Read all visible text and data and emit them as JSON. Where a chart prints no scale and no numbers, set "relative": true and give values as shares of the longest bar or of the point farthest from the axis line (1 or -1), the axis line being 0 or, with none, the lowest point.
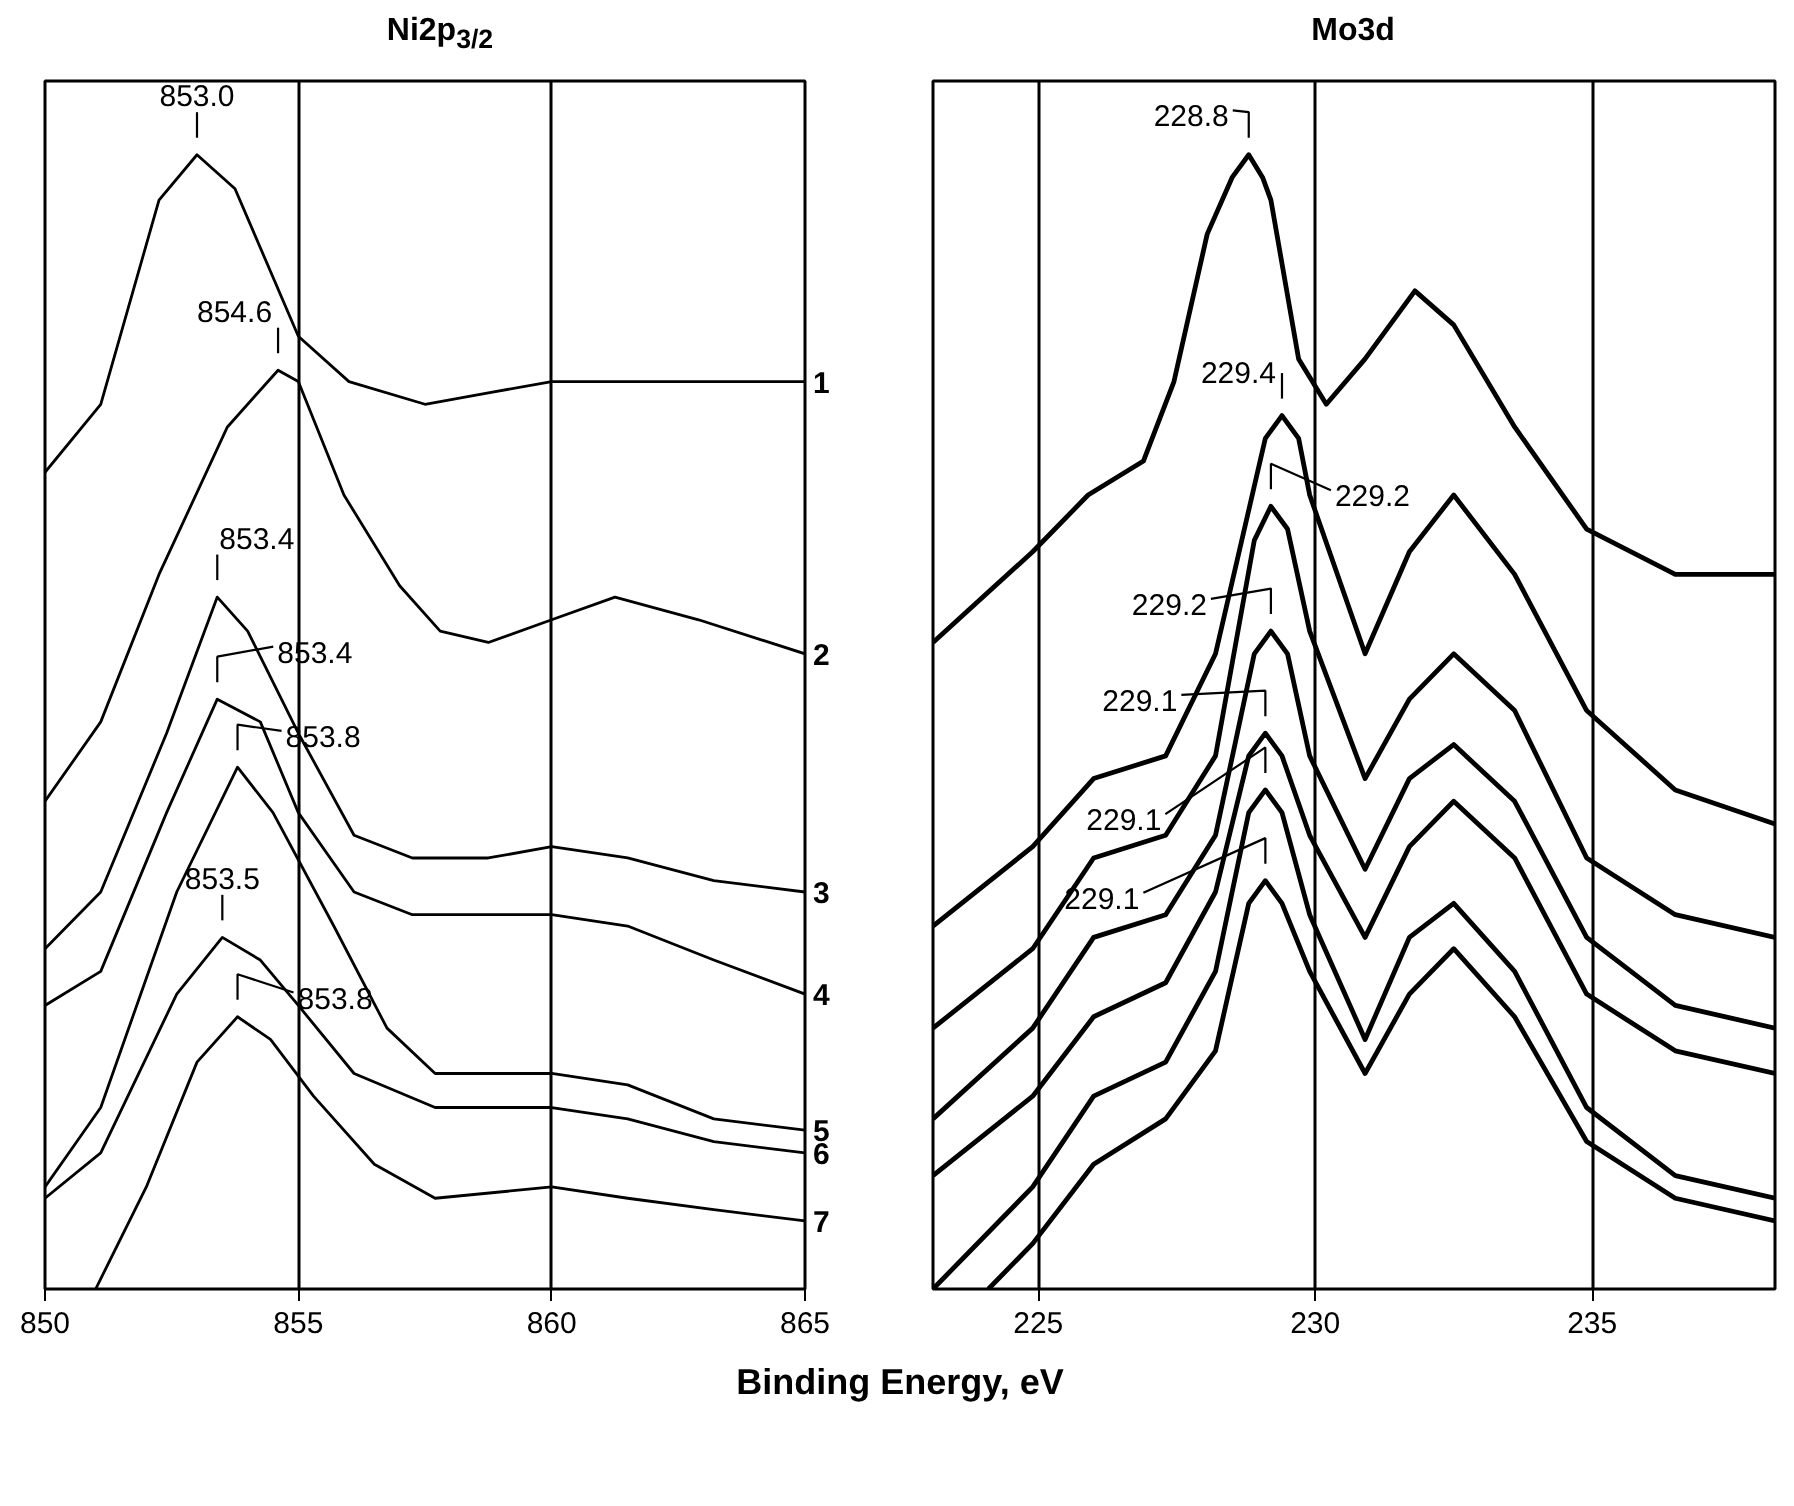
{
  "chart_data": [
    {
      "type": "line",
      "title": "Ni2p$_{3/2}$",
      "xlabel": "Binding Energy, eV",
      "relative": true,
      "xlim": [
        850,
        865
      ],
      "xticks": [
        850,
        855,
        860,
        865
      ],
      "grid": "x",
      "tick_labels": "x",
      "series": [
        {
          "name": "1",
          "color": "#000000",
          "x": [
            850,
            851.1,
            852.25,
            853.0,
            853.75,
            855.0,
            856.0,
            857.5,
            858.75,
            860,
            861.25,
            862.9,
            865
          ],
          "values": [
            0.72,
            0.78,
            0.96,
            1.0,
            0.97,
            0.84,
            0.8,
            0.78,
            0.79,
            0.8,
            0.8,
            0.8,
            0.8
          ]
        },
        {
          "name": "2",
          "color": "#000000",
          "x": [
            850,
            851.1,
            852.25,
            853.6,
            854.6,
            855.0,
            855.9,
            857.0,
            857.8,
            858.75,
            860,
            861.25,
            862.9,
            865
          ],
          "values": [
            0.43,
            0.5,
            0.63,
            0.76,
            0.81,
            0.8,
            0.7,
            0.62,
            0.58,
            0.57,
            0.59,
            0.61,
            0.59,
            0.56
          ]
        },
        {
          "name": "3",
          "color": "#000000",
          "x": [
            850,
            851.1,
            852.4,
            853.4,
            854.0,
            855.0,
            856.1,
            857.25,
            858.75,
            860,
            861.5,
            863.2,
            865
          ],
          "values": [
            0.3,
            0.35,
            0.49,
            0.61,
            0.58,
            0.49,
            0.4,
            0.38,
            0.38,
            0.39,
            0.38,
            0.36,
            0.35
          ]
        },
        {
          "name": "4",
          "color": "#000000",
          "x": [
            850,
            851.1,
            852.4,
            853.4,
            854.25,
            855.0,
            856.1,
            857.25,
            858.75,
            860,
            861.5,
            863.2,
            865
          ],
          "values": [
            0.25,
            0.28,
            0.42,
            0.52,
            0.5,
            0.42,
            0.35,
            0.33,
            0.33,
            0.33,
            0.32,
            0.29,
            0.26
          ]
        },
        {
          "name": "5",
          "color": "#000000",
          "x": [
            850,
            851.1,
            852.6,
            853.8,
            854.5,
            855.7,
            856.75,
            857.7,
            860,
            861.5,
            863.2,
            865
          ],
          "values": [
            0.09,
            0.16,
            0.35,
            0.46,
            0.42,
            0.32,
            0.23,
            0.19,
            0.19,
            0.18,
            0.15,
            0.14
          ]
        },
        {
          "name": "6",
          "color": "#000000",
          "x": [
            850,
            851.1,
            852.6,
            853.5,
            854.25,
            855.0,
            856.1,
            857.7,
            860,
            861.5,
            863.2,
            865
          ],
          "values": [
            0.08,
            0.12,
            0.26,
            0.31,
            0.29,
            0.25,
            0.19,
            0.16,
            0.16,
            0.15,
            0.13,
            0.12
          ]
        },
        {
          "name": "7",
          "color": "#000000",
          "x": [
            851.0,
            852.0,
            853.0,
            853.8,
            854.45,
            855.3,
            856.5,
            857.7,
            860,
            861.5,
            863.2,
            865
          ],
          "values": [
            0.0,
            0.09,
            0.2,
            0.24,
            0.22,
            0.17,
            0.11,
            0.08,
            0.09,
            0.08,
            0.07,
            0.06
          ]
        }
      ],
      "annotations": [
        {
          "text": "853.0",
          "x": 853.0,
          "y": 1.0
        },
        {
          "text": "854.6",
          "x": 854.6,
          "y": 0.81
        },
        {
          "text": "853.4",
          "x": 853.4,
          "y": 0.61
        },
        {
          "text": "853.4",
          "x": 853.4,
          "y": 0.52
        },
        {
          "text": "853.8",
          "x": 853.8,
          "y": 0.46
        },
        {
          "text": "853.5",
          "x": 853.5,
          "y": 0.31
        },
        {
          "text": "853.8",
          "x": 853.8,
          "y": 0.24
        }
      ]
    },
    {
      "type": "line",
      "title": "Mo3d",
      "relative": true,
      "xlim": [
        223.1,
        238.3
      ],
      "xticks": [
        225,
        230,
        235
      ],
      "grid": "x",
      "tick_labels": "x",
      "series": [
        {
          "color": "#000000",
          "x": [
            223.1,
            224.9,
            225.9,
            226.9,
            227.45,
            228.05,
            228.5,
            228.8,
            229.05,
            229.2,
            229.7,
            230.2,
            230.9,
            231.8,
            232.5,
            233.6,
            234.9,
            236.5,
            238.3
          ],
          "values": [
            0.57,
            0.65,
            0.7,
            0.73,
            0.8,
            0.93,
            0.98,
            1.0,
            0.98,
            0.96,
            0.82,
            0.78,
            0.82,
            0.88,
            0.85,
            0.76,
            0.67,
            0.63,
            0.63
          ]
        },
        {
          "color": "#000000",
          "x": [
            223.1,
            224.9,
            226.0,
            227.3,
            228.2,
            229.1,
            229.4,
            229.7,
            229.9,
            230.9,
            231.7,
            232.5,
            233.6,
            234.9,
            236.5,
            238.3
          ],
          "values": [
            0.32,
            0.39,
            0.45,
            0.47,
            0.56,
            0.75,
            0.77,
            0.75,
            0.7,
            0.56,
            0.65,
            0.7,
            0.63,
            0.51,
            0.44,
            0.41
          ]
        },
        {
          "color": "#000000",
          "x": [
            223.1,
            224.9,
            226.0,
            227.3,
            228.2,
            228.9,
            229.2,
            229.5,
            229.9,
            230.9,
            231.7,
            232.5,
            233.6,
            234.9,
            236.5,
            238.3
          ],
          "values": [
            0.23,
            0.3,
            0.38,
            0.4,
            0.47,
            0.66,
            0.69,
            0.67,
            0.58,
            0.45,
            0.52,
            0.56,
            0.51,
            0.38,
            0.33,
            0.31
          ]
        },
        {
          "color": "#000000",
          "x": [
            223.1,
            224.9,
            226.0,
            227.3,
            228.2,
            228.9,
            229.2,
            229.5,
            229.9,
            230.9,
            231.7,
            232.5,
            233.6,
            234.9,
            236.5,
            238.3
          ],
          "values": [
            0.15,
            0.23,
            0.31,
            0.33,
            0.4,
            0.56,
            0.58,
            0.56,
            0.47,
            0.37,
            0.45,
            0.48,
            0.43,
            0.31,
            0.25,
            0.23
          ]
        },
        {
          "color": "#000000",
          "x": [
            223.1,
            224.9,
            226.0,
            227.3,
            228.2,
            228.8,
            229.1,
            229.4,
            229.9,
            230.9,
            231.7,
            232.5,
            233.6,
            234.9,
            236.5,
            238.3
          ],
          "values": [
            0.1,
            0.17,
            0.24,
            0.27,
            0.35,
            0.47,
            0.49,
            0.47,
            0.4,
            0.31,
            0.39,
            0.43,
            0.38,
            0.26,
            0.21,
            0.19
          ]
        },
        {
          "color": "#000000",
          "x": [
            223.1,
            224.9,
            226.0,
            227.3,
            228.2,
            228.8,
            229.1,
            229.4,
            229.9,
            230.9,
            231.7,
            232.5,
            233.6,
            234.9,
            236.5,
            238.3
          ],
          "values": [
            0.0,
            0.09,
            0.17,
            0.2,
            0.28,
            0.42,
            0.44,
            0.42,
            0.33,
            0.22,
            0.31,
            0.34,
            0.28,
            0.16,
            0.1,
            0.08
          ]
        },
        {
          "color": "#000000",
          "x": [
            224.1,
            224.9,
            226.0,
            227.3,
            228.2,
            228.8,
            229.1,
            229.4,
            229.9,
            230.9,
            231.7,
            232.5,
            233.6,
            234.9,
            236.5,
            238.3
          ],
          "values": [
            0.0,
            0.04,
            0.11,
            0.15,
            0.21,
            0.34,
            0.36,
            0.34,
            0.28,
            0.19,
            0.26,
            0.3,
            0.24,
            0.13,
            0.08,
            0.06
          ]
        }
      ],
      "annotations": [
        {
          "text": "228.8",
          "x": 228.8,
          "y": 1.0
        },
        {
          "text": "229.4",
          "x": 229.4,
          "y": 0.77
        },
        {
          "text": "229.2",
          "x": 229.2,
          "y": 0.69
        },
        {
          "text": "229.2",
          "x": 229.2,
          "y": 0.58
        },
        {
          "text": "229.1",
          "x": 229.1,
          "y": 0.49
        },
        {
          "text": "229.1",
          "x": 229.1,
          "y": 0.44
        },
        {
          "text": "229.1",
          "x": 229.1,
          "y": 0.36
        }
      ]
    }
  ]
}
